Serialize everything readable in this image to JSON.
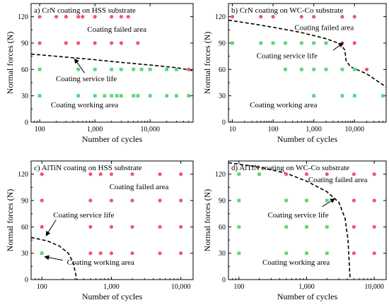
{
  "colors": {
    "failed": "#f0566e",
    "working": "#5dd87a"
  },
  "chart_data": [
    {
      "type": "scatter",
      "title": "a) CrN coating on HSS substrate",
      "xlabel": "Number of cycles",
      "ylabel": "Normal forces (N)",
      "xscale": "log",
      "xlim": [
        70,
        60000
      ],
      "ylim": [
        0,
        135
      ],
      "xticks": [
        100,
        1000,
        10000
      ],
      "xtick_labels": [
        "100",
        "1,000",
        "10,000"
      ],
      "yticks": [
        0,
        30,
        60,
        90,
        120
      ],
      "ytick_labels": [
        "0",
        "30",
        "60",
        "90",
        "120"
      ],
      "series": [
        {
          "role": "failed",
          "points": [
            [
              100,
              120
            ],
            [
              200,
              120
            ],
            [
              300,
              120
            ],
            [
              500,
              120
            ],
            [
              600,
              120
            ],
            [
              1000,
              120
            ],
            [
              2000,
              120
            ],
            [
              3000,
              120
            ],
            [
              4000,
              120
            ],
            [
              100,
              90
            ],
            [
              300,
              90
            ],
            [
              500,
              90
            ],
            [
              1000,
              90
            ],
            [
              2000,
              90
            ],
            [
              3000,
              90
            ],
            [
              6000,
              90
            ],
            [
              50000,
              60
            ]
          ]
        },
        {
          "role": "working",
          "points": [
            [
              100,
              60
            ],
            [
              500,
              60
            ],
            [
              1000,
              60
            ],
            [
              2000,
              60
            ],
            [
              3000,
              60
            ],
            [
              5000,
              60
            ],
            [
              7000,
              60
            ],
            [
              10000,
              60
            ],
            [
              20000,
              60
            ],
            [
              30000,
              60
            ],
            [
              100,
              30
            ],
            [
              500,
              30
            ],
            [
              1000,
              30
            ],
            [
              1500,
              30
            ],
            [
              2000,
              30
            ],
            [
              2500,
              30
            ],
            [
              3000,
              30
            ],
            [
              5000,
              30
            ],
            [
              6000,
              30
            ],
            [
              10000,
              30
            ],
            [
              20000,
              30
            ],
            [
              30000,
              30
            ],
            [
              50000,
              30
            ]
          ]
        }
      ],
      "curve": [
        [
          70,
          77.5
        ],
        [
          300,
          74
        ],
        [
          1000,
          71
        ],
        [
          3000,
          68
        ],
        [
          10000,
          65
        ],
        [
          30000,
          62
        ],
        [
          60000,
          58.5
        ]
      ],
      "annotations": [
        {
          "text": "Coating failed area",
          "x": 2500,
          "y": 106
        },
        {
          "text": "Coating service life",
          "x": 700,
          "y": 50
        },
        {
          "text": "Coating working area",
          "x": 650,
          "y": 20
        }
      ],
      "arrows": [
        {
          "from": [
            650,
            56
          ],
          "to": [
            430,
            72
          ]
        }
      ]
    },
    {
      "type": "scatter",
      "title": "b) CrN coating on WC-Co substrate",
      "xlabel": "Number of cycles",
      "ylabel": "Normal forces (N)",
      "xscale": "log",
      "xlim": [
        8,
        60000
      ],
      "ylim": [
        0,
        135
      ],
      "xticks": [
        10,
        100,
        1000,
        10000
      ],
      "xtick_labels": [
        "10",
        "100",
        "1,000",
        "10,000"
      ],
      "yticks": [
        0,
        30,
        60,
        90,
        120
      ],
      "ytick_labels": [
        "0",
        "30",
        "60",
        "90",
        "120"
      ],
      "series": [
        {
          "role": "failed",
          "points": [
            [
              10,
              120
            ],
            [
              50,
              120
            ],
            [
              100,
              120
            ],
            [
              500,
              120
            ],
            [
              1000,
              120
            ],
            [
              5000,
              120
            ],
            [
              10000,
              120
            ],
            [
              5000,
              90
            ],
            [
              10000,
              90
            ],
            [
              20000,
              60
            ]
          ]
        },
        {
          "role": "working",
          "points": [
            [
              10,
              90
            ],
            [
              50,
              90
            ],
            [
              100,
              90
            ],
            [
              200,
              90
            ],
            [
              500,
              90
            ],
            [
              1000,
              90
            ],
            [
              2000,
              90
            ],
            [
              1000,
              60
            ],
            [
              200,
              60
            ],
            [
              500,
              60
            ],
            [
              2000,
              60
            ],
            [
              5000,
              60
            ],
            [
              10000,
              60
            ],
            [
              1000,
              30
            ],
            [
              5000,
              30
            ],
            [
              10000,
              30
            ],
            [
              50000,
              30
            ]
          ]
        }
      ],
      "curve": [
        [
          8,
          116
        ],
        [
          30,
          112
        ],
        [
          100,
          108
        ],
        [
          500,
          102
        ],
        [
          2000,
          95
        ],
        [
          4500,
          89
        ],
        [
          5800,
          82
        ],
        [
          6200,
          70
        ],
        [
          8000,
          63
        ],
        [
          20000,
          55
        ],
        [
          60000,
          40
        ]
      ],
      "annotations": [
        {
          "text": "Coating failed area",
          "x": 1800,
          "y": 108
        },
        {
          "text": "Coating service life",
          "x": 220,
          "y": 76
        },
        {
          "text": "Coating working area",
          "x": 180,
          "y": 20
        }
      ],
      "arrows": [
        {
          "from": [
            3000,
            82
          ],
          "to": [
            5200,
            90
          ]
        }
      ]
    },
    {
      "type": "scatter",
      "title": "c) AlTiN coating on HSS substrate",
      "xlabel": "Number of cycles",
      "ylabel": "Normal forces (N)",
      "xscale": "log",
      "xlim": [
        70,
        15000
      ],
      "ylim": [
        0,
        135
      ],
      "xticks": [
        100,
        1000,
        10000
      ],
      "xtick_labels": [
        "100",
        "1,000",
        "10,000"
      ],
      "yticks": [
        0,
        30,
        60,
        90,
        120
      ],
      "ytick_labels": [
        "0",
        "30",
        "60",
        "90",
        "120"
      ],
      "series": [
        {
          "role": "failed",
          "points": [
            [
              100,
              120
            ],
            [
              500,
              120
            ],
            [
              700,
              120
            ],
            [
              1000,
              120
            ],
            [
              2000,
              120
            ],
            [
              5000,
              120
            ],
            [
              10000,
              120
            ],
            [
              100,
              90
            ],
            [
              500,
              90
            ],
            [
              1000,
              90
            ],
            [
              2000,
              90
            ],
            [
              5000,
              90
            ],
            [
              10000,
              90
            ],
            [
              100,
              60
            ],
            [
              500,
              60
            ],
            [
              1000,
              60
            ],
            [
              2000,
              60
            ],
            [
              5000,
              60
            ],
            [
              10000,
              60
            ],
            [
              500,
              30
            ],
            [
              700,
              30
            ],
            [
              1000,
              30
            ],
            [
              2000,
              30
            ],
            [
              5000,
              30
            ],
            [
              10000,
              30
            ]
          ]
        },
        {
          "role": "working",
          "points": [
            [
              100,
              30
            ]
          ]
        }
      ],
      "curve": [
        [
          70,
          48
        ],
        [
          120,
          44
        ],
        [
          180,
          38
        ],
        [
          240,
          30
        ],
        [
          280,
          20
        ],
        [
          320,
          0
        ]
      ],
      "annotations": [
        {
          "text": "Coating failed area",
          "x": 2500,
          "y": 106
        },
        {
          "text": "Coating service life",
          "x": 400,
          "y": 74
        },
        {
          "text": "Coating working area",
          "x": 700,
          "y": 20
        }
      ],
      "arrows": [
        {
          "from": [
            160,
            68
          ],
          "to": [
            115,
            50
          ]
        },
        {
          "from": [
            200,
            22
          ],
          "to": [
            110,
            26
          ]
        }
      ]
    },
    {
      "type": "scatter",
      "title": "d) AlTiN coating on WC-Co substrate",
      "xlabel": "Number of cycles",
      "ylabel": "Normal forces (N)",
      "xscale": "log",
      "xlim": [
        70,
        15000
      ],
      "ylim": [
        0,
        135
      ],
      "xticks": [
        100,
        1000,
        10000
      ],
      "xtick_labels": [
        "100",
        "1,000",
        "10,000"
      ],
      "yticks": [
        0,
        30,
        60,
        90,
        120
      ],
      "ytick_labels": [
        "0",
        "30",
        "60",
        "90",
        "120"
      ],
      "series": [
        {
          "role": "failed",
          "points": [
            [
              500,
              120
            ],
            [
              1000,
              120
            ],
            [
              2000,
              120
            ],
            [
              5000,
              120
            ],
            [
              10000,
              120
            ],
            [
              5000,
              90
            ],
            [
              10000,
              90
            ],
            [
              5000,
              60
            ],
            [
              10000,
              60
            ],
            [
              5000,
              30
            ],
            [
              10000,
              30
            ]
          ]
        },
        {
          "role": "working",
          "points": [
            [
              100,
              120
            ],
            [
              200,
              120
            ],
            [
              100,
              90
            ],
            [
              500,
              90
            ],
            [
              1000,
              90
            ],
            [
              2000,
              90
            ],
            [
              100,
              60
            ],
            [
              500,
              60
            ],
            [
              1000,
              60
            ],
            [
              2000,
              60
            ],
            [
              100,
              30
            ],
            [
              500,
              30
            ],
            [
              1000,
              30
            ],
            [
              2000,
              30
            ]
          ]
        }
      ],
      "curve": [
        [
          70,
          133
        ],
        [
          200,
          128
        ],
        [
          500,
          121
        ],
        [
          1000,
          112
        ],
        [
          2000,
          100
        ],
        [
          3000,
          88
        ],
        [
          3700,
          70
        ],
        [
          4100,
          45
        ],
        [
          4400,
          0
        ]
      ],
      "annotations": [
        {
          "text": "Coating failed area",
          "x": 2900,
          "y": 114
        },
        {
          "text": "Coating service life",
          "x": 750,
          "y": 74
        },
        {
          "text": "Coating working area",
          "x": 700,
          "y": 20
        }
      ],
      "arrows": [
        {
          "from": [
            1700,
            83
          ],
          "to": [
            2600,
            92
          ]
        }
      ]
    }
  ]
}
